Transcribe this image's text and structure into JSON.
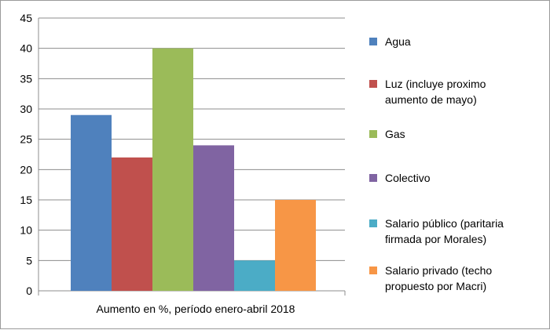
{
  "chart_data": {
    "type": "bar",
    "x_category_label": "Aumento en %, período enero-abril 2018",
    "ylim": [
      0,
      45
    ],
    "y_ticks": [
      0,
      5,
      10,
      15,
      20,
      25,
      30,
      35,
      40,
      45
    ],
    "grid": true,
    "legend_position": "right",
    "series": [
      {
        "name": "Agua",
        "name_lines": [
          "Agua"
        ],
        "value": 29,
        "color": "#4F81BD"
      },
      {
        "name": "Luz (incluye proximo aumento de mayo)",
        "name_lines": [
          "Luz (incluye proximo",
          "aumento de mayo)"
        ],
        "value": 22,
        "color": "#C0504D"
      },
      {
        "name": "Gas",
        "name_lines": [
          "Gas"
        ],
        "value": 40,
        "color": "#9BBB59"
      },
      {
        "name": "Colectivo",
        "name_lines": [
          "Colectivo"
        ],
        "value": 24,
        "color": "#8064A2"
      },
      {
        "name": "Salario público (paritaria firmada por Morales)",
        "name_lines": [
          "Salario público (paritaria",
          "firmada por Morales)"
        ],
        "value": 5,
        "color": "#4BACC6"
      },
      {
        "name": "Salario privado (techo propuesto por Macri)",
        "name_lines": [
          "Salario privado (techo",
          "propuesto por Macri)"
        ],
        "value": 15,
        "color": "#F79646"
      }
    ]
  }
}
